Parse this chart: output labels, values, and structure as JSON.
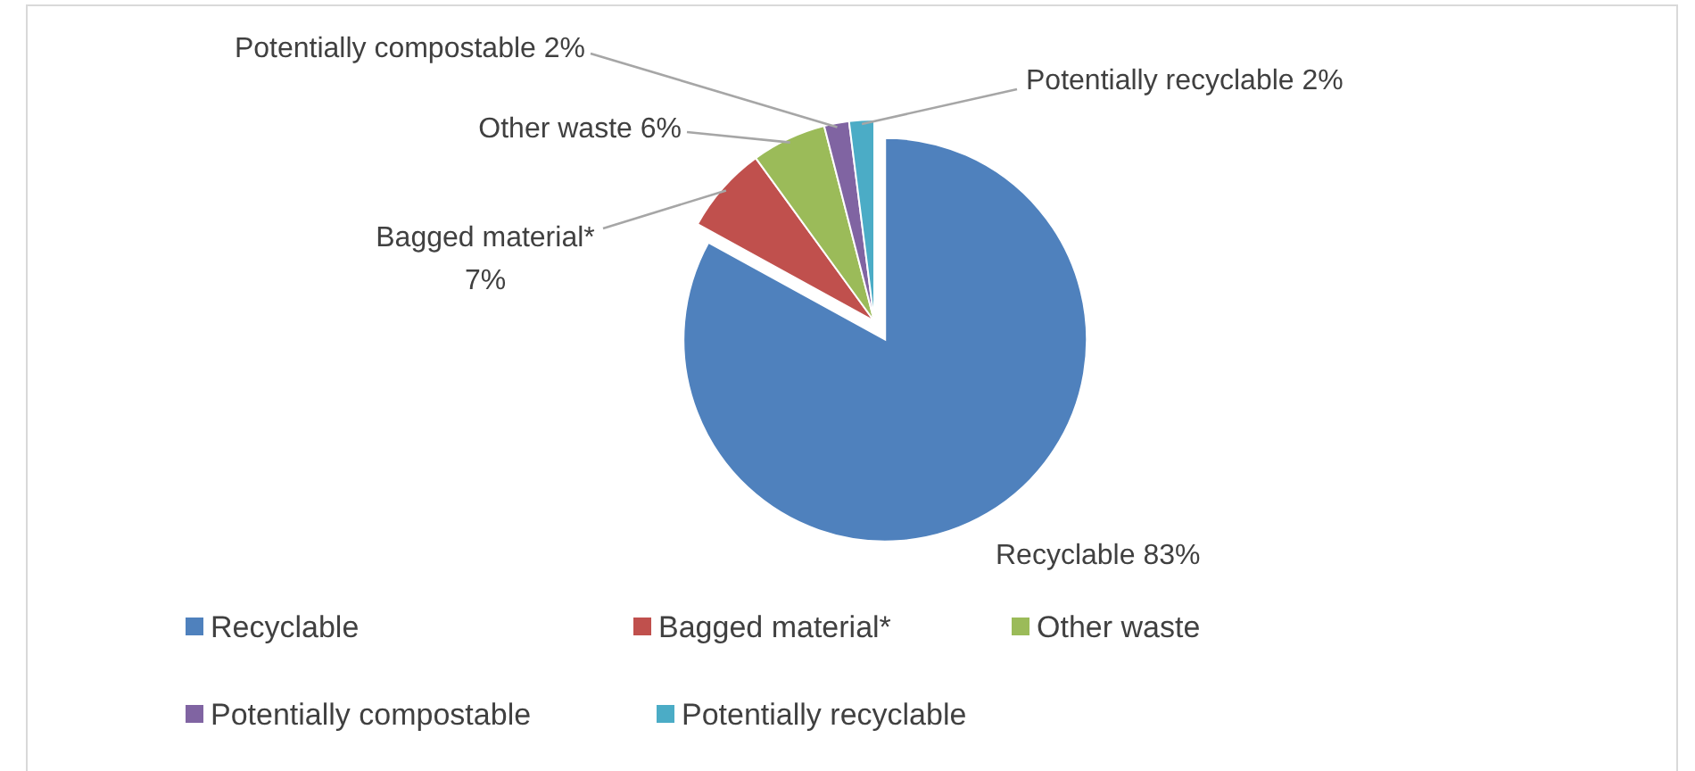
{
  "chart_data": {
    "type": "pie",
    "categories": [
      "Recyclable",
      "Bagged material*",
      "Other waste",
      "Potentially compostable",
      "Potentially recyclable"
    ],
    "values": [
      83,
      7,
      6,
      2,
      2
    ],
    "colors": [
      "#4f81bd",
      "#c0504d",
      "#9bbb59",
      "#8064a2",
      "#4bacc6"
    ],
    "value_labels": [
      "83%",
      "7%",
      "6%",
      "2%",
      "2%"
    ],
    "legend": "bottom"
  }
}
